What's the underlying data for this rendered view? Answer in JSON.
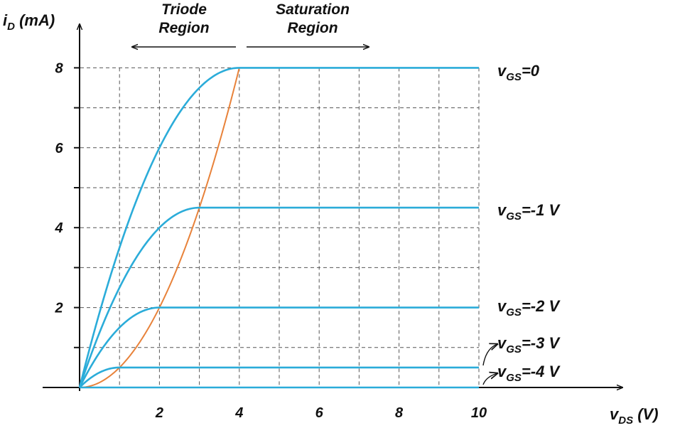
{
  "chart_data": {
    "type": "line",
    "xlabel": {
      "main": "v",
      "sub": "DS",
      "unit": " (V)"
    },
    "ylabel": {
      "main": "i",
      "sub": "D",
      "unit": " (mA)"
    },
    "xlim": [
      0,
      10
    ],
    "ylim": [
      0,
      8
    ],
    "x_ticks": [
      "2",
      "4",
      "6",
      "8",
      "10"
    ],
    "y_ticks": [
      "2",
      "4",
      "6",
      "8"
    ],
    "grid": true,
    "grid_step": {
      "x": 1,
      "y": 1
    },
    "IDSS_mA": 8,
    "Vp_V": 4,
    "series": [
      {
        "vgs": 0,
        "label_main": "v",
        "label_sub": "GS",
        "label_tail": "=0",
        "saturation_current": 8,
        "vds_sat": 4
      },
      {
        "vgs": -1,
        "label_main": "v",
        "label_sub": "GS",
        "label_tail": "=-1 V",
        "saturation_current": 4.5,
        "vds_sat": 3
      },
      {
        "vgs": -2,
        "label_main": "v",
        "label_sub": "GS",
        "label_tail": "=-2 V",
        "saturation_current": 2,
        "vds_sat": 2
      },
      {
        "vgs": -3,
        "label_main": "v",
        "label_sub": "GS",
        "label_tail": "=-3 V",
        "saturation_current": 0.5,
        "vds_sat": 1
      },
      {
        "vgs": -4,
        "label_main": "v",
        "label_sub": "GS",
        "label_tail": "=-4 V",
        "saturation_current": 0,
        "vds_sat": 0
      }
    ],
    "boundary": {
      "name": "triode/saturation boundary",
      "x_range": [
        0,
        4
      ]
    },
    "regions": [
      {
        "line1": "Triode",
        "line2": "Region",
        "arrow": "left"
      },
      {
        "line1": "Saturation",
        "line2": "Region",
        "arrow": "right"
      }
    ],
    "colors": {
      "curves": "#2bacd9",
      "boundary": "#e8823a",
      "grid": "#555555",
      "axes": "#111111"
    }
  }
}
